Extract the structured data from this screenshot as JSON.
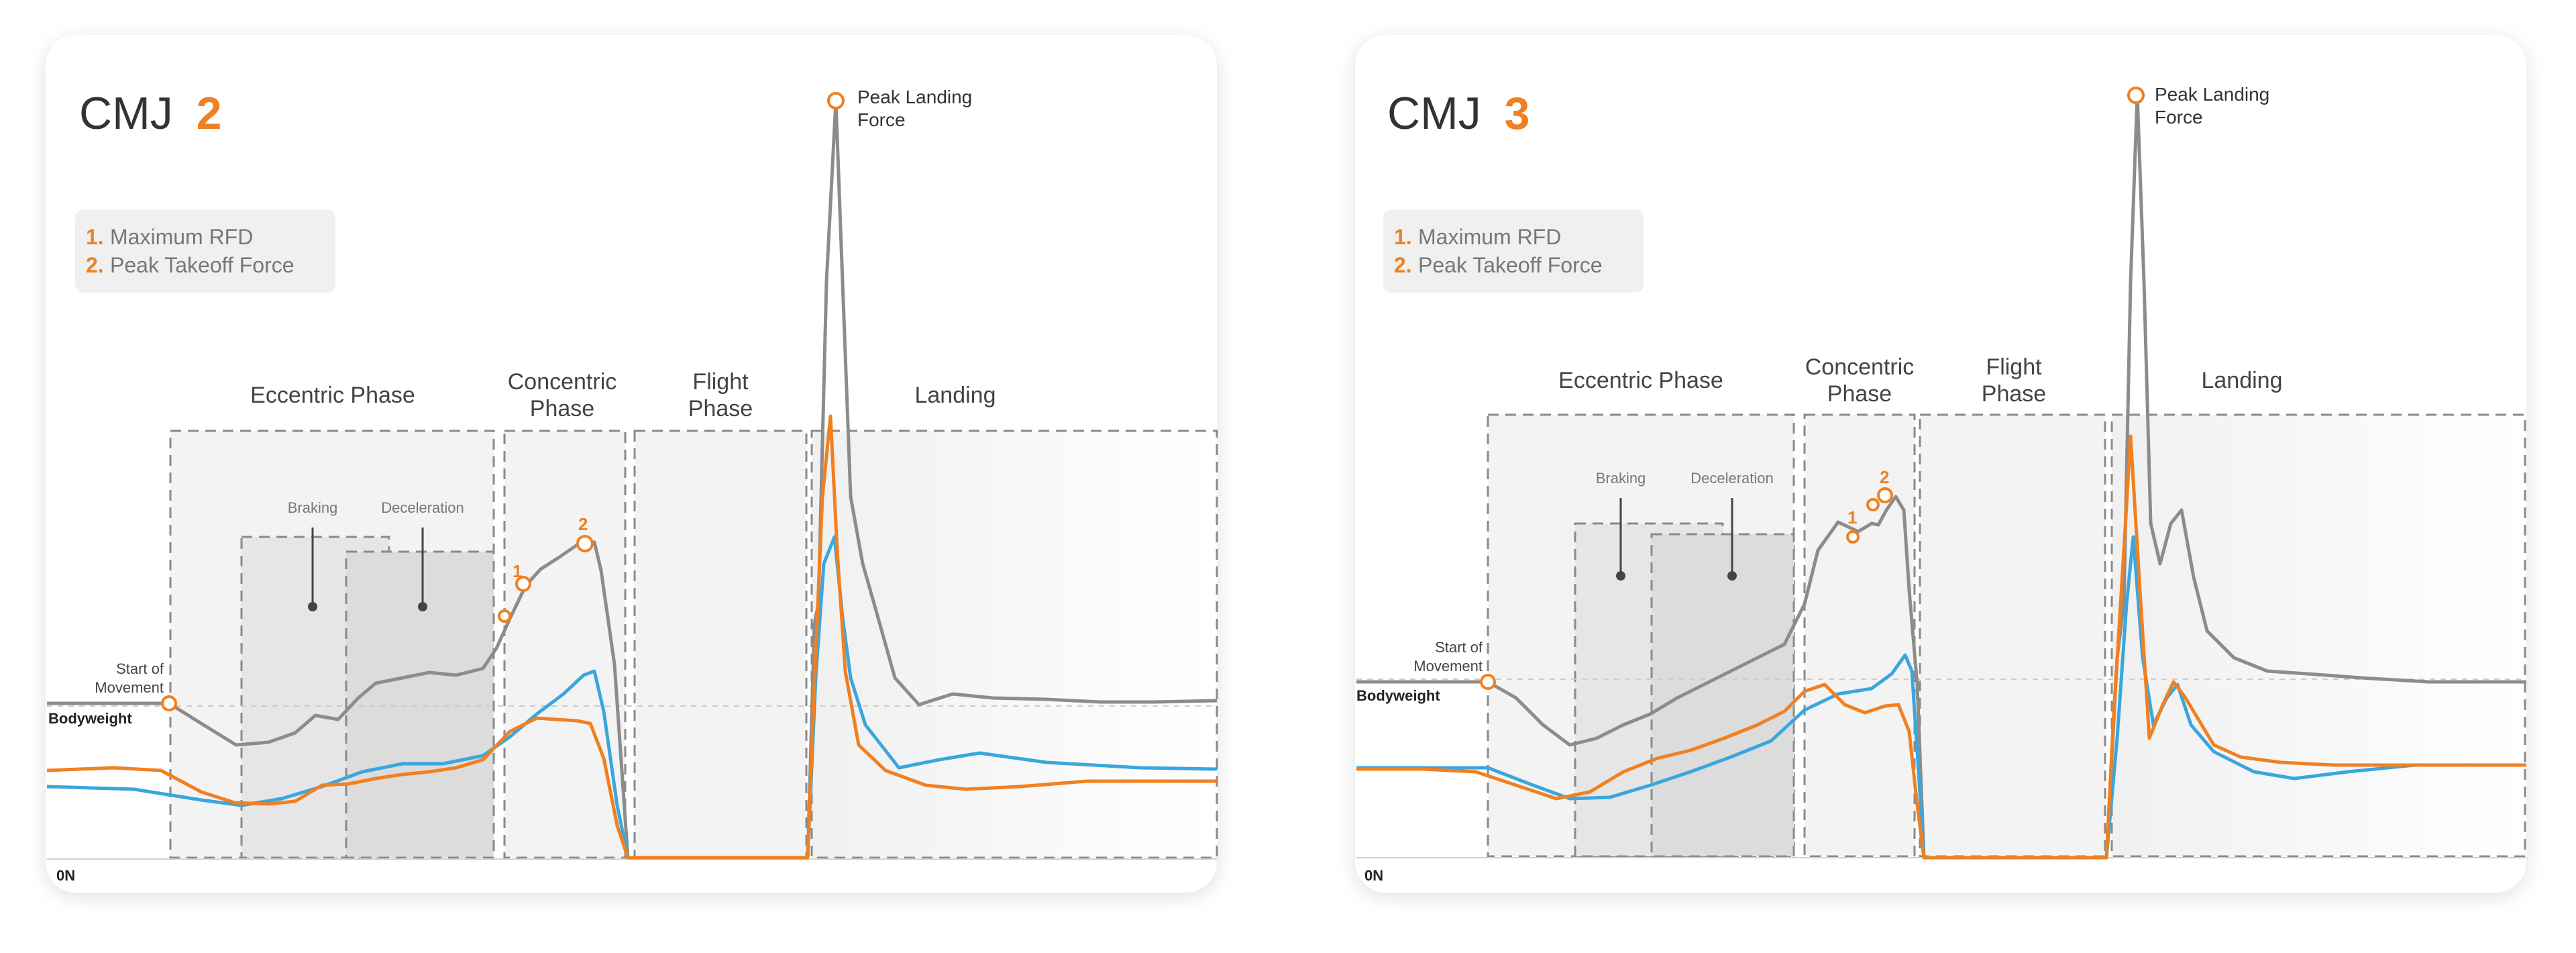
{
  "colors": {
    "accent": "#f08021",
    "blue": "#3aa6dd",
    "gray": "#8c8c8c",
    "card_bg": "#ffffff",
    "legend_bg": "#f0f0f0",
    "phase_fill": "#f2f2f2",
    "subphase_fill": "#e6e6e6"
  },
  "charts": [
    {
      "title_prefix": "CMJ",
      "title_number": "2",
      "legend": [
        {
          "num": "1.",
          "label": "Maximum RFD"
        },
        {
          "num": "2.",
          "label": "Peak Takeoff Force"
        }
      ],
      "phases": {
        "eccentric": "Eccentric Phase",
        "concentric": [
          "Concentric",
          "Phase"
        ],
        "flight": [
          "Flight",
          "Phase"
        ],
        "landing": "Landing",
        "braking": "Braking",
        "deceleration": "Deceleration"
      },
      "annotations": {
        "start": [
          "Start of",
          "Movement"
        ],
        "bodyweight": "Bodyweight",
        "zero": "0N",
        "peak": [
          "Peak Landing",
          "Force"
        ],
        "m1": "1",
        "m2": "2"
      }
    },
    {
      "title_prefix": "CMJ",
      "title_number": "3",
      "legend": [
        {
          "num": "1.",
          "label": "Maximum RFD"
        },
        {
          "num": "2.",
          "label": "Peak Takeoff Force"
        }
      ],
      "phases": {
        "eccentric": "Eccentric Phase",
        "concentric": [
          "Concentric",
          "Phase"
        ],
        "flight": [
          "Flight",
          "Phase"
        ],
        "landing": "Landing",
        "braking": "Braking",
        "deceleration": "Deceleration"
      },
      "annotations": {
        "start": [
          "Start of",
          "Movement"
        ],
        "bodyweight": "Bodyweight",
        "zero": "0N",
        "peak": [
          "Peak Landing",
          "Force"
        ],
        "m1": "1",
        "m2": "2"
      }
    }
  ],
  "chart_data": [
    {
      "type": "line",
      "title": "CMJ 2",
      "grid": false,
      "series": [
        {
          "color": "#8c8c8c",
          "x": [
            0,
            1,
            2,
            3,
            4,
            5,
            6,
            7,
            8,
            9,
            10,
            11,
            12,
            13,
            14,
            15,
            16,
            17,
            18,
            19,
            20,
            21,
            22,
            23,
            24,
            25,
            26,
            27,
            28,
            29,
            30,
            31,
            32,
            33,
            34,
            35
          ],
          "values": [
            1.0,
            1.0,
            0.96,
            0.93,
            0.94,
            0.97,
            0.99,
            1.02,
            1.05,
            1.09,
            1.08,
            1.12,
            1.12,
            1.12,
            1.17,
            1.23,
            1.31,
            1.37,
            1.42,
            1.45,
            1.38,
            0.6,
            0.0,
            0.0,
            0.0,
            0.0,
            0.0,
            5.1,
            1.3,
            1.4,
            1.1,
            1.05,
            1.0,
            1.0,
            1.0,
            1.0
          ]
        },
        {
          "color": "#3aa6dd",
          "x": [
            0,
            1,
            2,
            3,
            4,
            5,
            6,
            7,
            8,
            9,
            10,
            11,
            12,
            13,
            14,
            15,
            16,
            17,
            18,
            19,
            20,
            21,
            22,
            23,
            24,
            25,
            26,
            27,
            28,
            29,
            30,
            31,
            32,
            33,
            34,
            35
          ],
          "values": [
            0.49,
            0.48,
            0.46,
            0.44,
            0.45,
            0.48,
            0.51,
            0.53,
            0.56,
            0.58,
            0.62,
            0.65,
            0.68,
            0.74,
            0.82,
            0.89,
            0.94,
            0.97,
            1.02,
            1.06,
            1.0,
            0.3,
            0.0,
            0.0,
            0.0,
            0.0,
            0.0,
            1.9,
            1.1,
            0.6,
            0.64,
            0.64,
            0.62,
            0.62,
            0.62,
            0.62
          ]
        },
        {
          "color": "#f08021",
          "x": [
            0,
            1,
            2,
            3,
            4,
            5,
            6,
            7,
            8,
            9,
            10,
            11,
            12,
            13,
            14,
            15,
            16,
            17,
            18,
            19,
            20,
            21,
            22,
            23,
            24,
            25,
            26,
            27,
            28,
            29,
            30,
            31,
            32,
            33,
            34,
            35
          ],
          "values": [
            0.63,
            0.64,
            0.62,
            0.57,
            0.48,
            0.45,
            0.48,
            0.52,
            0.54,
            0.56,
            0.58,
            0.59,
            0.6,
            0.62,
            0.7,
            0.83,
            0.9,
            0.92,
            0.9,
            0.88,
            0.6,
            0.1,
            0.0,
            0.0,
            0.0,
            0.0,
            0.0,
            2.6,
            0.9,
            0.6,
            0.45,
            0.46,
            0.46,
            0.46,
            0.46,
            0.46
          ]
        }
      ],
      "annotations": [
        "Start of Movement",
        "Bodyweight",
        "0N",
        "Peak Landing Force",
        "1",
        "2"
      ]
    },
    {
      "type": "line",
      "title": "CMJ 3",
      "grid": false,
      "series": [
        {
          "color": "#8c8c8c",
          "x": [
            0,
            1,
            2,
            3,
            4,
            5,
            6,
            7,
            8,
            9,
            10,
            11,
            12,
            13,
            14,
            15,
            16,
            17,
            18,
            19,
            20,
            21,
            22,
            23,
            24,
            25,
            26,
            27,
            28,
            29,
            30,
            31,
            32,
            33,
            34,
            35
          ],
          "values": [
            1.0,
            1.0,
            0.95,
            0.9,
            0.94,
            0.98,
            1.02,
            1.06,
            1.1,
            1.15,
            1.2,
            1.25,
            1.3,
            1.42,
            1.48,
            1.52,
            1.5,
            1.4,
            0.4,
            0.0,
            0.0,
            0.0,
            0.0,
            0.0,
            0.0,
            5.4,
            1.8,
            1.4,
            1.15,
            1.05,
            1.02,
            1.0,
            1.0,
            1.0,
            1.0,
            1.0
          ]
        },
        {
          "color": "#3aa6dd",
          "x": [
            0,
            1,
            2,
            3,
            4,
            5,
            6,
            7,
            8,
            9,
            10,
            11,
            12,
            13,
            14,
            15,
            16,
            17,
            18,
            19,
            20,
            21,
            22,
            23,
            24,
            25,
            26,
            27,
            28,
            29,
            30,
            31,
            32,
            33,
            34,
            35
          ],
          "values": [
            0.62,
            0.62,
            0.6,
            0.55,
            0.5,
            0.52,
            0.55,
            0.6,
            0.66,
            0.72,
            0.8,
            0.88,
            0.94,
            0.97,
            1.02,
            1.06,
            1.0,
            0.3,
            0.0,
            0.0,
            0.0,
            0.0,
            0.0,
            0.0,
            0.0,
            2.0,
            1.0,
            0.7,
            0.58,
            0.6,
            0.62,
            0.62,
            0.62,
            0.62,
            0.62,
            0.62
          ]
        },
        {
          "color": "#f08021",
          "x": [
            0,
            1,
            2,
            3,
            4,
            5,
            6,
            7,
            8,
            9,
            10,
            11,
            12,
            13,
            14,
            15,
            16,
            17,
            18,
            19,
            20,
            21,
            22,
            23,
            24,
            25,
            26,
            27,
            28,
            29,
            30,
            31,
            32,
            33,
            34,
            35
          ],
          "values": [
            0.6,
            0.6,
            0.58,
            0.55,
            0.5,
            0.55,
            0.62,
            0.66,
            0.7,
            0.74,
            0.78,
            0.88,
            0.99,
            0.95,
            0.9,
            0.93,
            0.8,
            0.2,
            0.0,
            0.0,
            0.0,
            0.0,
            0.0,
            0.0,
            0.0,
            3.0,
            0.8,
            0.72,
            0.66,
            0.64,
            0.62,
            0.62,
            0.62,
            0.62,
            0.62,
            0.62
          ]
        }
      ],
      "annotations": [
        "Start of Movement",
        "Bodyweight",
        "0N",
        "Peak Landing Force",
        "1",
        "2"
      ]
    }
  ]
}
